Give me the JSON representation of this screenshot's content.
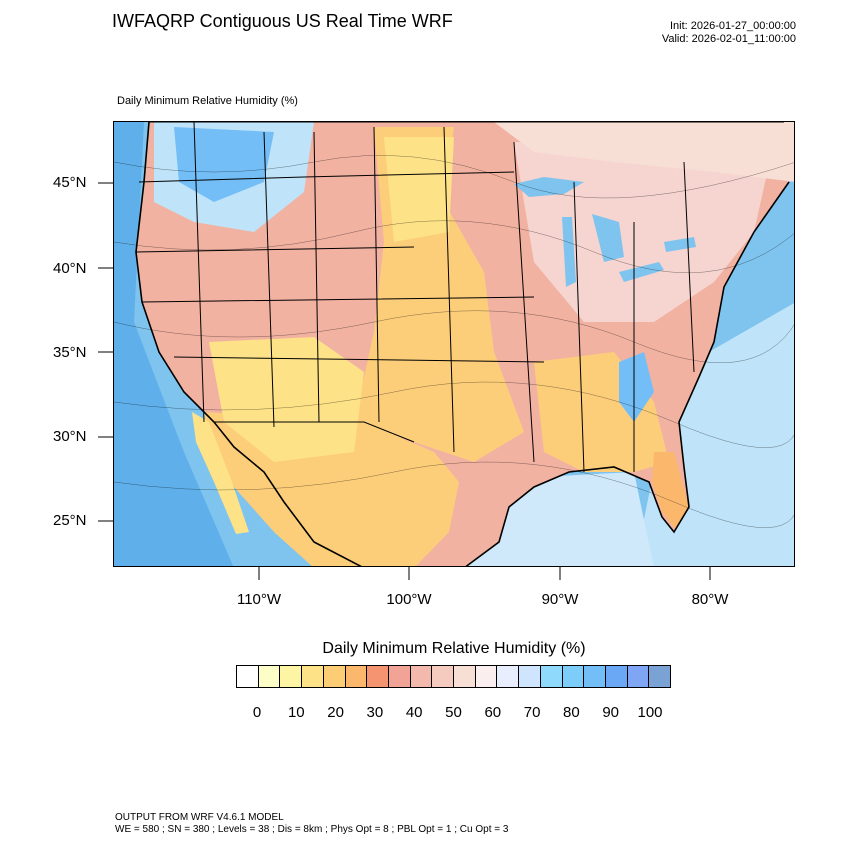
{
  "title": "IWFAQRP Contiguous US Real Time WRF",
  "init": "Init: 2026-01-27_00:00:00",
  "valid": "Valid: 2026-02-01_11:00:00",
  "subtitle": "Daily Minimum Relative Humidity   (%)",
  "latitude_labels": [
    "45°N",
    "40°N",
    "35°N",
    "30°N",
    "25°N"
  ],
  "longitude_labels": [
    "110°W",
    "100°W",
    "90°W",
    "80°W"
  ],
  "colorbar": {
    "title": "Daily Minimum Relative Humidity   (%)",
    "colors": [
      "#ffffff",
      "#fdfdc8",
      "#fdf5a4",
      "#fde287",
      "#fdcd76",
      "#fbb86d",
      "#f49470",
      "#f1a395",
      "#f3b9ac",
      "#f6cbbf",
      "#f8dfd6",
      "#fbeeee",
      "#e8eefe",
      "#cfe5fd",
      "#8fd9fc",
      "#7dcdfa",
      "#74bef8",
      "#6aa7f4",
      "#7ea6f4",
      "#7aa2d4"
    ],
    "tick_labels": [
      "0",
      "10",
      "20",
      "30",
      "40",
      "50",
      "60",
      "70",
      "80",
      "90",
      "100"
    ]
  },
  "footer": {
    "line1": "OUTPUT FROM WRF V4.6.1 MODEL",
    "line2": "WE = 580 ; SN = 380 ; Levels = 38 ; Dis = 8km ; Phys Opt = 8 ; PBL Opt = 1 ; Cu Opt = 3"
  },
  "palette": {
    "ocean": "#7ec4ef",
    "dry": "#fdce7a",
    "very_dry": "#fbe889",
    "moist": "#f2b2a2",
    "wet": "#bfe3f8",
    "pink": "#f6d4cf"
  }
}
